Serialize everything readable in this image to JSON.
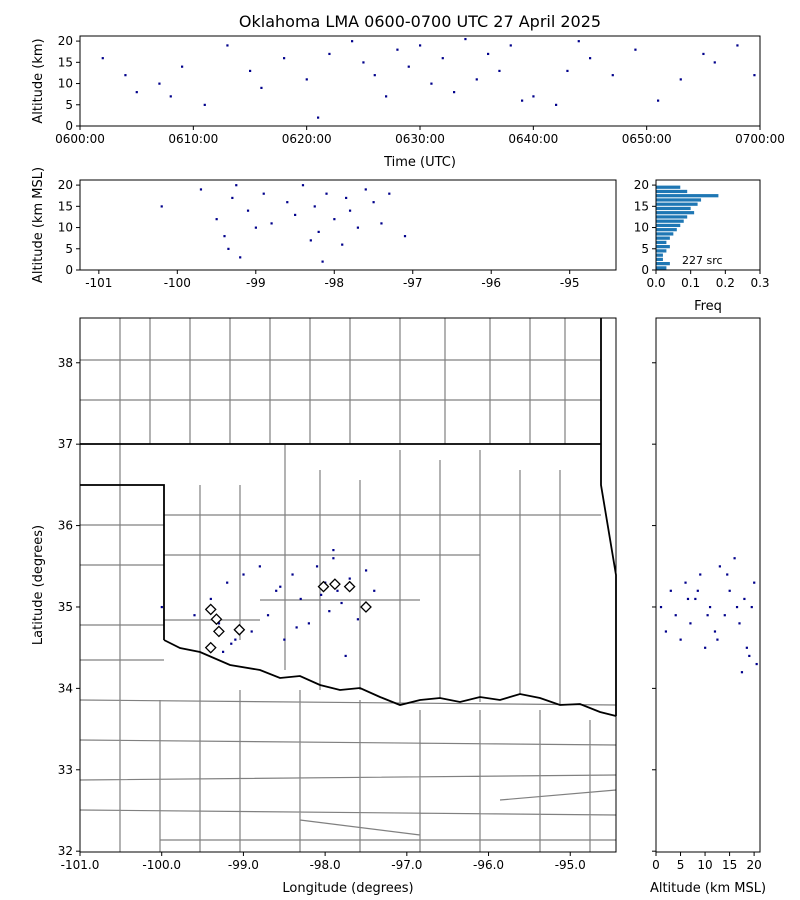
{
  "chart_data": [
    {
      "type": "scatter",
      "title": "Oklahoma LMA 0600-0700 UTC 27 April 2025",
      "xlabel": "Time (UTC)",
      "ylabel": "Altitude (km)",
      "xlim": [
        0,
        60
      ],
      "xticks": [
        {
          "value": 0,
          "label": "0600:00"
        },
        {
          "value": 10,
          "label": "0610:00"
        },
        {
          "value": 20,
          "label": "0620:00"
        },
        {
          "value": 30,
          "label": "0630:00"
        },
        {
          "value": 40,
          "label": "0640:00"
        },
        {
          "value": 50,
          "label": "0650:00"
        },
        {
          "value": 60,
          "label": "0700:00"
        }
      ],
      "ylim": [
        0,
        21.2
      ],
      "yticks": [
        0,
        5,
        10,
        15,
        20
      ],
      "series": [
        {
          "color": "#00008b",
          "x": [
            2,
            4,
            5,
            7,
            8,
            9,
            11,
            13,
            15,
            16,
            18,
            20,
            21,
            22,
            24,
            25,
            26,
            27,
            28,
            29,
            30,
            31,
            32,
            33,
            34,
            35,
            36,
            37,
            38,
            39,
            40,
            42,
            43,
            44,
            45,
            47,
            49,
            51,
            53,
            55,
            56,
            58,
            59.5
          ],
          "values": [
            16,
            12,
            8,
            10,
            7,
            14,
            5,
            19,
            13,
            9,
            16,
            11,
            2,
            17,
            20,
            15,
            12,
            7,
            18,
            14,
            19,
            10,
            16,
            8,
            20.5,
            11,
            17,
            13,
            19,
            6,
            7,
            5,
            13,
            20,
            16,
            12,
            18,
            6,
            11,
            17,
            15,
            19,
            12
          ]
        }
      ]
    },
    {
      "type": "scatter",
      "ylabel": "Altitude (km MSL)",
      "xlim": [
        -101.24,
        -94.41
      ],
      "xticks": [
        -101,
        -100,
        -99,
        -98,
        -97,
        -96,
        -95
      ],
      "ylim": [
        0,
        21.2
      ],
      "yticks": [
        0,
        5,
        10,
        15,
        20
      ],
      "series": [
        {
          "color": "#00008b",
          "x": [
            -100.2,
            -99.7,
            -99.5,
            -99.4,
            -99.3,
            -99.2,
            -99.1,
            -99.0,
            -98.9,
            -98.8,
            -98.6,
            -98.5,
            -98.4,
            -98.3,
            -98.25,
            -98.2,
            -98.1,
            -98.0,
            -97.9,
            -97.85,
            -97.8,
            -97.7,
            -97.6,
            -97.5,
            -97.4,
            -97.3,
            -97.1,
            -99.35,
            -99.25,
            -98.15
          ],
          "values": [
            15,
            19,
            12,
            8,
            17,
            3,
            14,
            10,
            18,
            11,
            16,
            13,
            20,
            7,
            15,
            9,
            18,
            12,
            6,
            17,
            14,
            10,
            19,
            16,
            11,
            18,
            8,
            5,
            20,
            2
          ]
        }
      ]
    },
    {
      "type": "histogram",
      "xlabel": "Freq",
      "annotation": "227 src",
      "xlim": [
        0,
        0.3
      ],
      "xticks": [
        {
          "value": 0,
          "label": "0.0"
        },
        0.1,
        0.2,
        0.3
      ],
      "ylim": [
        0,
        21.2
      ],
      "yticks": [
        0,
        5,
        10,
        15,
        20
      ],
      "color": "#1f77b4",
      "bins": [
        0,
        1,
        2,
        3,
        4,
        5,
        6,
        7,
        8,
        9,
        10,
        11,
        12,
        13,
        14,
        15,
        16,
        17,
        18,
        19,
        20
      ],
      "values": [
        0.03,
        0.04,
        0.02,
        0.02,
        0.03,
        0.04,
        0.03,
        0.04,
        0.05,
        0.06,
        0.07,
        0.08,
        0.09,
        0.11,
        0.1,
        0.12,
        0.13,
        0.18,
        0.09,
        0.07
      ]
    },
    {
      "type": "scatter",
      "xlabel": "Longitude (degrees)",
      "ylabel": "Latitude (degrees)",
      "xlim": [
        -101,
        -94.44
      ],
      "xticks": [
        {
          "value": -101,
          "label": "-101.0"
        },
        {
          "value": -100,
          "label": "-100.0"
        },
        {
          "value": -99,
          "label": "-99.0"
        },
        {
          "value": -98,
          "label": "-98.0"
        },
        {
          "value": -97,
          "label": "-97.0"
        },
        {
          "value": -96,
          "label": "-96.0"
        },
        {
          "value": -95,
          "label": "-95.0"
        }
      ],
      "ylim": [
        31.99,
        38.55
      ],
      "yticks": [
        32,
        33,
        34,
        35,
        36,
        37,
        38
      ],
      "series": [
        {
          "color": "#00008b",
          "x": [
            -100.0,
            -99.6,
            -99.4,
            -99.3,
            -99.2,
            -99.1,
            -99.0,
            -98.9,
            -98.8,
            -98.7,
            -98.6,
            -98.5,
            -98.4,
            -98.3,
            -98.2,
            -98.1,
            -98.0,
            -97.95,
            -97.9,
            -97.85,
            -97.8,
            -97.75,
            -97.7,
            -97.6,
            -97.5,
            -97.4,
            -99.25,
            -98.35,
            -98.05,
            -97.9,
            -99.15,
            -98.55
          ],
          "values": [
            35.0,
            34.9,
            35.1,
            34.8,
            35.3,
            34.6,
            35.4,
            34.7,
            35.5,
            34.9,
            35.2,
            34.6,
            35.4,
            35.1,
            34.8,
            35.5,
            35.3,
            34.95,
            35.6,
            35.2,
            35.05,
            34.4,
            35.35,
            34.85,
            35.45,
            35.2,
            34.45,
            34.75,
            35.15,
            35.7,
            34.55,
            35.25
          ]
        }
      ],
      "stations": {
        "x": [
          -99.4,
          -99.33,
          -99.3,
          -99.05,
          -99.4,
          -98.02,
          -97.88,
          -97.7,
          -97.5
        ],
        "values": [
          34.97,
          34.85,
          34.7,
          34.72,
          34.5,
          35.25,
          35.28,
          35.25,
          35.0
        ]
      }
    },
    {
      "type": "scatter",
      "xlabel": "Altitude (km MSL)",
      "xlim": [
        0,
        21.2
      ],
      "xticks": [
        0,
        5,
        10,
        15,
        20
      ],
      "ylim": [
        31.99,
        38.55
      ],
      "yticks": [
        32,
        33,
        34,
        35,
        36,
        37,
        38
      ],
      "series": [
        {
          "color": "#00008b",
          "x": [
            1,
            2,
            3,
            4,
            5,
            6,
            7,
            8,
            9,
            10,
            11,
            12,
            13,
            14,
            15,
            16,
            17,
            18,
            19,
            20,
            20.5,
            8.5,
            12.5,
            16.5,
            18.5,
            14.5,
            10.5,
            6.5,
            17.5,
            19.5
          ],
          "values": [
            35.0,
            34.7,
            35.2,
            34.9,
            34.6,
            35.3,
            34.8,
            35.1,
            35.4,
            34.5,
            35.0,
            34.7,
            35.5,
            34.9,
            35.2,
            35.6,
            34.8,
            35.1,
            34.4,
            35.3,
            34.3,
            35.2,
            34.6,
            35.0,
            34.5,
            35.4,
            34.9,
            35.1,
            34.2,
            35.0
          ]
        }
      ]
    }
  ]
}
